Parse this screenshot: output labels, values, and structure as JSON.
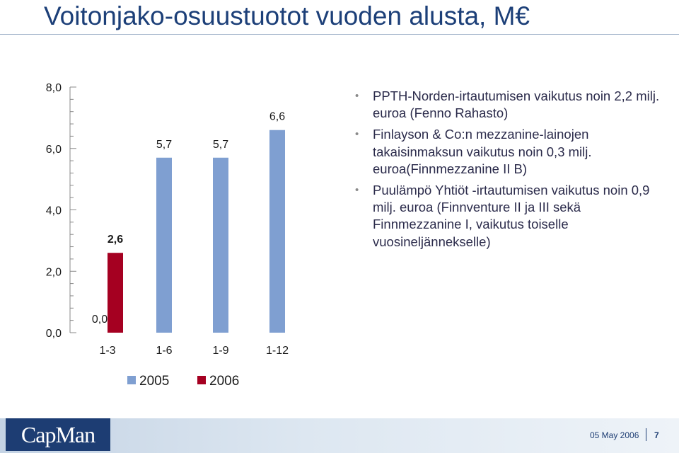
{
  "title": "Voitonjako-osuustuotot vuoden alusta, M€",
  "chart_data": {
    "type": "bar",
    "categories": [
      "1-3",
      "1-6",
      "1-9",
      "1-12"
    ],
    "series": [
      {
        "name": "2005",
        "color": "#7f9fd1",
        "values": [
          0.0,
          5.7,
          5.7,
          6.6
        ]
      },
      {
        "name": "2006",
        "color": "#a50021",
        "values": [
          2.6,
          null,
          null,
          null
        ]
      }
    ],
    "value_labels": [
      "0,0",
      "2,6",
      "5,7",
      "5,7",
      "6,6"
    ],
    "yticks": [
      "0,0",
      "2,0",
      "4,0",
      "6,0",
      "8,0"
    ],
    "ylim": [
      0,
      8
    ],
    "grid": false,
    "legend": "bottom"
  },
  "bullets": [
    "PPTH-Norden-irtautumisen vaikutus noin 2,2 milj. euroa (Fenno Rahasto)",
    "Finlayson & Co:n mezzanine-lainojen takaisinmaksun vaikutus noin 0,3 milj. euroa(Finnmezzanine II B)",
    "Puulämpö Yhtiöt -irtautumisen vaikutus noin 0,9 milj. euroa (Finnventure II ja III sekä Finnmezzanine I, vaikutus toiselle vuosineljännekselle)"
  ],
  "footer": {
    "logo": "CapMan",
    "date": "05 May 2006",
    "page": "7"
  }
}
